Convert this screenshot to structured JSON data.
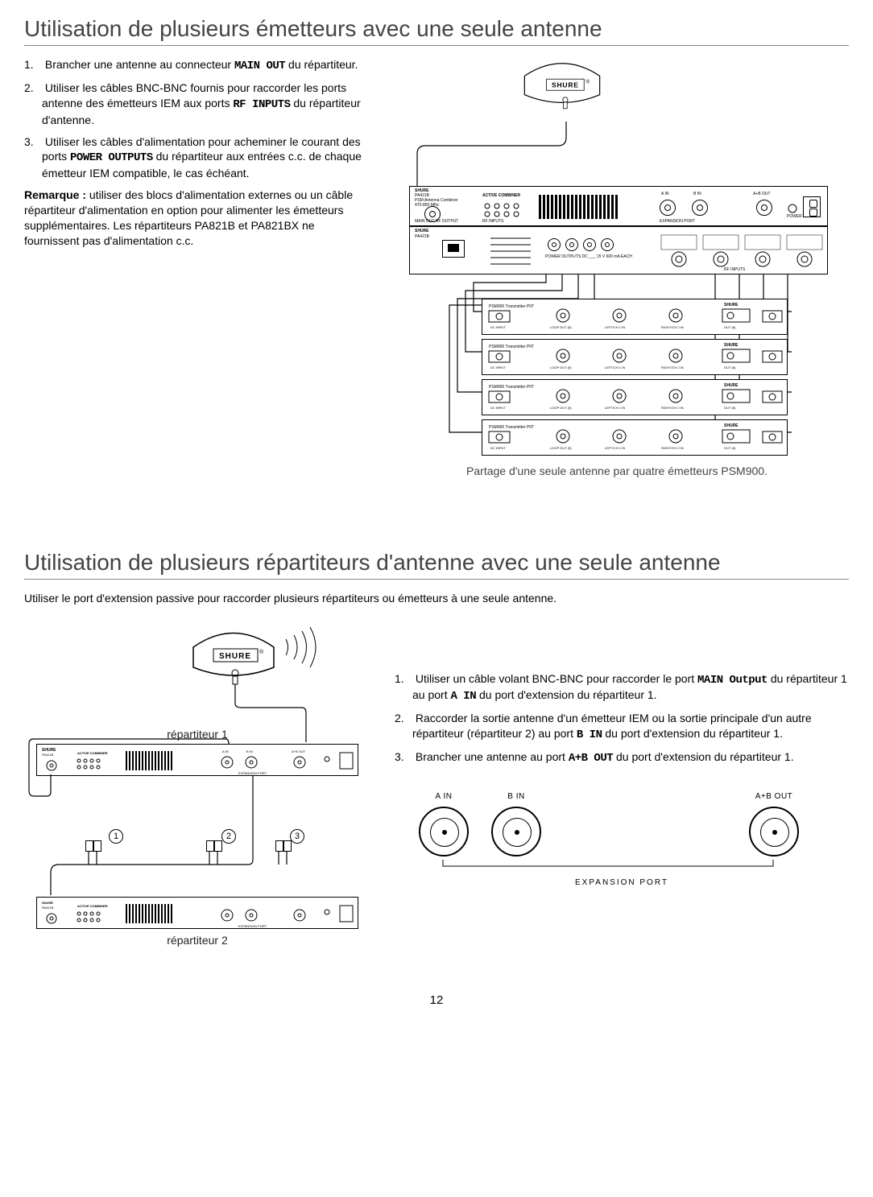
{
  "page_number": "12",
  "section1": {
    "title": "Utilisation de plusieurs émetteurs avec une seule antenne",
    "steps": [
      {
        "pre": "Brancher une antenne au connecteur ",
        "code": "MAIN OUT",
        "post": " du répartiteur."
      },
      {
        "pre": "Utiliser les câbles BNC-BNC fournis pour raccorder les ports antenne des émetteurs IEM aux ports ",
        "code": "RF INPUTS",
        "post": " du répartiteur d'antenne."
      },
      {
        "pre": "Utiliser les câbles d'alimentation pour acheminer le courant des ports ",
        "code": "POWER OUTPUTS",
        "post": " du répartiteur aux entrées c.c. de chaque émetteur IEM compatible, le cas échéant."
      }
    ],
    "remark_label": "Remarque : ",
    "remark_body": "utiliser des blocs d'alimentation externes ou un câble répartiteur d'alimentation en option pour alimenter les émetteurs supplémentaires. Les répartiteurs PA821B et PA821BX ne fournissent pas d'alimentation c.c.",
    "caption": "Partage d'une seule antenne par quatre émetteurs PSM900.",
    "diagram": {
      "brand": "SHURE",
      "front_labels": {
        "model_top": "PA421B",
        "model_sub": "PSM Antenna Combiner",
        "freq": "470-865 MHz",
        "combiner": "ACTIVE COMBINER",
        "main_out": "MAIN OUT   RF OUTPUT",
        "rf_inputs": "RF INPUTS",
        "a_in": "A IN",
        "b_in": "B IN",
        "ab_out": "A+B OUT",
        "power": "POWER",
        "expansion": "EXPANSION PORT"
      },
      "back_labels": {
        "power_outputs": "POWER OUTPUTS DC ___ 15 V 600 mA EACH",
        "rf_inputs": "RF INPUTS"
      },
      "tx_labels": {
        "model": "PSM900 Transmitter P9T",
        "dc_in": "DC INPUT",
        "loop": "LOOP OUT (5)",
        "left": "LEFT/CH 1 IN",
        "right": "RIGHT/CH 2 IN",
        "out": "OUT (6)"
      }
    }
  },
  "section2": {
    "title": "Utilisation de plusieurs répartiteurs d'antenne avec une seule antenne",
    "intro": "Utiliser le port d'extension passive pour raccorder plusieurs répartiteurs ou émetteurs à une seule antenne.",
    "labels": {
      "rep1": "répartiteur 1",
      "rep2": "répartiteur 2"
    },
    "steps": [
      {
        "pre": "Utiliser un câble volant BNC-BNC pour raccorder le port ",
        "code": "MAIN Output",
        "post_pre": " du répartiteur 1 au port ",
        "code2": "A IN",
        "post": " du port d'extension du répartiteur 1."
      },
      {
        "pre": "Raccorder la sortie antenne d'un émetteur IEM ou la sortie principale d'un autre répartiteur (répartiteur 2) au port ",
        "code": "B IN",
        "post": " du port d'extension du répartiteur 1."
      },
      {
        "pre": "Brancher une antenne au port ",
        "code": "A+B OUT",
        "post": " du port d'extension du répartiteur 1."
      }
    ],
    "port_panel": {
      "a_in": "A IN",
      "b_in": "B IN",
      "ab_out": "A+B OUT",
      "label": "EXPANSION PORT"
    },
    "mini_labels": {
      "combiner": "ACTIVE COMBINER",
      "model": "PA421B",
      "sub": "PSM Antenna Combiner",
      "freq": "470-865 MHz",
      "a_in": "A IN",
      "b_in": "B IN",
      "ab_out": "A+B OUT",
      "expansion": "EXPANSION PORT"
    },
    "step_markers": [
      "1",
      "2",
      "3"
    ]
  },
  "colors": {
    "heading": "#444444",
    "rule": "#888888",
    "text": "#000000",
    "caption": "#444444"
  }
}
